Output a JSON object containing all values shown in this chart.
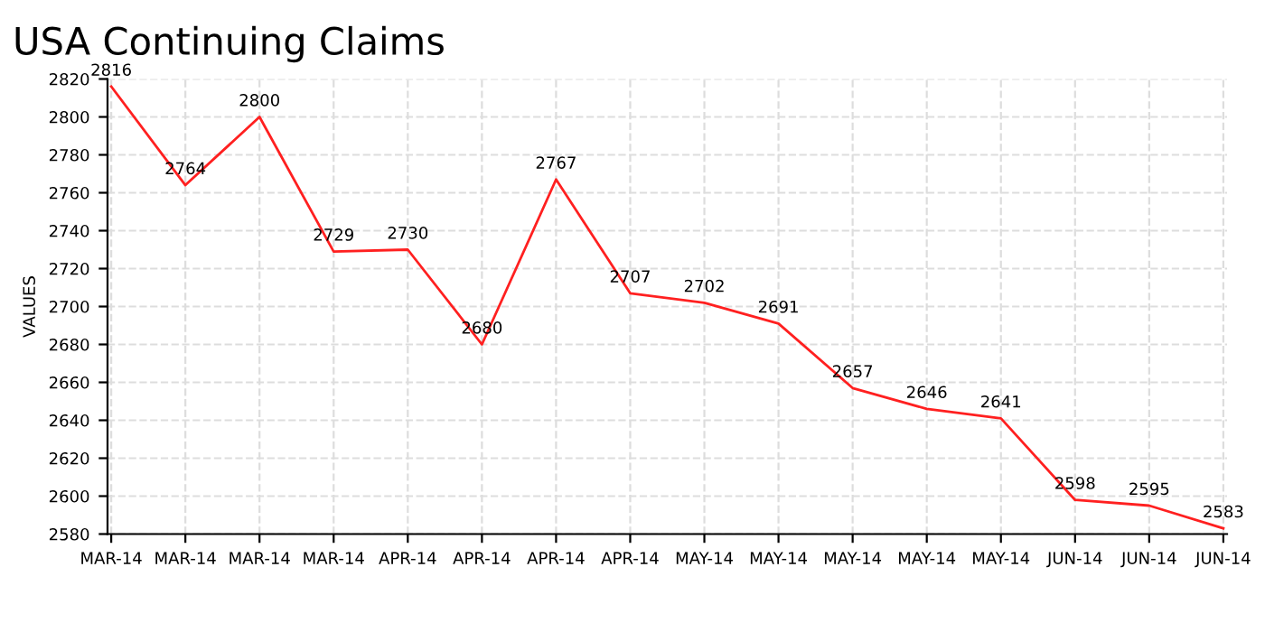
{
  "chart_data": {
    "type": "line",
    "title": "USA Continuing Claims",
    "ylabel": "VALUES",
    "categories": [
      "MAR-14",
      "MAR-14",
      "MAR-14",
      "MAR-14",
      "APR-14",
      "APR-14",
      "APR-14",
      "APR-14",
      "MAY-14",
      "MAY-14",
      "MAY-14",
      "MAY-14",
      "MAY-14",
      "JUN-14",
      "JUN-14",
      "JUN-14"
    ],
    "series": [
      {
        "color": "#ff2020",
        "values": [
          2816,
          2764,
          2800,
          2729,
          2730,
          2680,
          2767,
          2707,
          2702,
          2691,
          2657,
          2646,
          2641,
          2598,
          2595,
          2583
        ]
      }
    ],
    "ylim": [
      2580,
      2820
    ],
    "yticks": [
      2580,
      2600,
      2620,
      2640,
      2660,
      2680,
      2700,
      2720,
      2740,
      2760,
      2780,
      2800,
      2820
    ],
    "grid": true,
    "data_labels": true,
    "marker": "none",
    "line_style": "solid"
  }
}
